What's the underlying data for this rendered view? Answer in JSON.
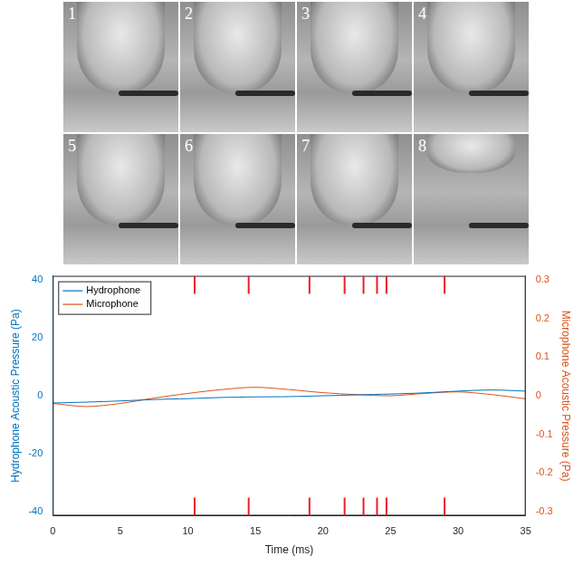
{
  "frames": {
    "labels": [
      "1",
      "2",
      "3",
      "4",
      "5",
      "6",
      "7",
      "8"
    ]
  },
  "chart_data": {
    "type": "line",
    "x": [
      0,
      2.5,
      5,
      7.5,
      10,
      12.5,
      15,
      17.5,
      20,
      22.5,
      25,
      27.5,
      30,
      32.5,
      35
    ],
    "series": [
      {
        "name": "Hydrophone",
        "color": "#0072bd",
        "values": [
          -2.5,
          -2.2,
          -1.8,
          -1.3,
          -1.0,
          -0.6,
          -0.4,
          -0.3,
          0,
          0.3,
          0.6,
          1.0,
          1.6,
          2.0,
          1.6
        ]
      },
      {
        "name": "Microphone",
        "color": "#d95319",
        "axis": "y2",
        "values": [
          -0.02,
          -0.028,
          -0.02,
          -0.006,
          0.006,
          0.016,
          0.022,
          0.016,
          0.008,
          0.003,
          0.0,
          0.006,
          0.01,
          0.003,
          -0.008
        ]
      }
    ],
    "x_label": "Time (ms)",
    "y_label": "Hydrophone Acoustic Pressure (Pa)",
    "y2_label": "Microphone Acoustic Pressure (Pa)",
    "xlim": [
      0,
      35
    ],
    "xticks": [
      0,
      5,
      10,
      15,
      20,
      25,
      30,
      35
    ],
    "ylim": [
      -41.5,
      41.5
    ],
    "yticks": [
      -40,
      -20,
      0,
      20,
      40
    ],
    "y2lim": [
      -0.311,
      0.311
    ],
    "y2ticks": [
      -0.3,
      -0.2,
      -0.1,
      0,
      0.1,
      0.2,
      0.3
    ],
    "event_times": [
      10.5,
      14.5,
      19,
      21.6,
      23,
      24,
      24.7,
      29
    ],
    "event_color": "#e8202a",
    "grid": false,
    "legend": "upper left"
  }
}
